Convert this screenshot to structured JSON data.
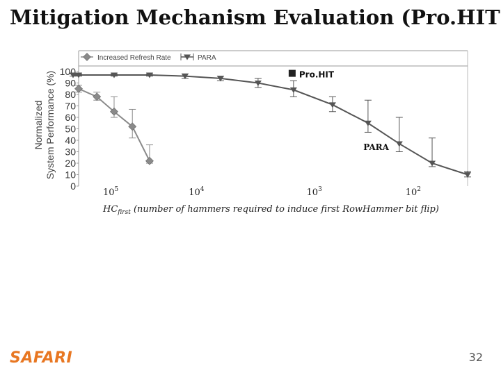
{
  "slide": {
    "title": "Mitigation Mechanism Evaluation (Pro.HIT)",
    "logo": "SAFARI",
    "page_number": "32"
  },
  "chart_data": {
    "type": "line",
    "ylabel": "Normalized System Performance (%)",
    "xlabel_prefix": "HC",
    "xlabel_sub": "first",
    "xlabel_rest": " (number of hammers required to induce first RowHammer bit flip)",
    "x_scale": "log-reversed",
    "xlim": [
      100000,
      50
    ],
    "x_ticks": [
      {
        "value": 100000,
        "base": "10",
        "exp": "5"
      },
      {
        "value": 10000,
        "base": "10",
        "exp": "4"
      },
      {
        "value": 1000,
        "base": "10",
        "exp": "3"
      },
      {
        "value": 100,
        "base": "10",
        "exp": "2"
      }
    ],
    "ylim": [
      0,
      100
    ],
    "y_ticks": [
      "0",
      "10",
      "20",
      "30",
      "40",
      "50",
      "60",
      "70",
      "80",
      "90",
      "100"
    ],
    "series": [
      {
        "name": "Increased Refresh Rate",
        "marker": "diamond",
        "color": "#8a8a8a",
        "points": [
          {
            "x": 100000,
            "y": 85,
            "err_low": 82,
            "err_high": 88
          },
          {
            "x": 70000,
            "y": 78,
            "err_low": 75,
            "err_high": 82
          },
          {
            "x": 50000,
            "y": 65,
            "err_low": 60,
            "err_high": 78
          },
          {
            "x": 35000,
            "y": 52,
            "err_low": 42,
            "err_high": 67
          },
          {
            "x": 25000,
            "y": 22,
            "err_low": 20,
            "err_high": 36
          }
        ]
      },
      {
        "name": "PARA",
        "marker": "triangle-down",
        "color": "#555555",
        "points": [
          {
            "x": 200000,
            "y": 97,
            "err_low": 96,
            "err_high": 98
          },
          {
            "x": 100000,
            "y": 97,
            "err_low": 96,
            "err_high": 98
          },
          {
            "x": 50000,
            "y": 97,
            "err_low": 96,
            "err_high": 98
          },
          {
            "x": 25000,
            "y": 97,
            "err_low": 96,
            "err_high": 98
          },
          {
            "x": 12500,
            "y": 96,
            "err_low": 94,
            "err_high": 98
          },
          {
            "x": 6250,
            "y": 94,
            "err_low": 92,
            "err_high": 96
          },
          {
            "x": 3000,
            "y": 90,
            "err_low": 86,
            "err_high": 94
          },
          {
            "x": 1500,
            "y": 84,
            "err_low": 78,
            "err_high": 92
          },
          {
            "x": 700,
            "y": 71,
            "err_low": 65,
            "err_high": 78
          },
          {
            "x": 350,
            "y": 55,
            "err_low": 47,
            "err_high": 75
          },
          {
            "x": 190,
            "y": 37,
            "err_low": 30,
            "err_high": 60
          },
          {
            "x": 100,
            "y": 20,
            "err_low": 17,
            "err_high": 42
          },
          {
            "x": 50,
            "y": 10,
            "err_low": 8,
            "err_high": 13
          }
        ]
      }
    ],
    "annotations": [
      {
        "text": "Pro.HIT",
        "x": 1500,
        "y": 96,
        "marker": "square",
        "color": "#222222"
      },
      {
        "text": "PARA",
        "x": 300,
        "y": 34
      }
    ],
    "legend_position": "top",
    "grid": false
  }
}
